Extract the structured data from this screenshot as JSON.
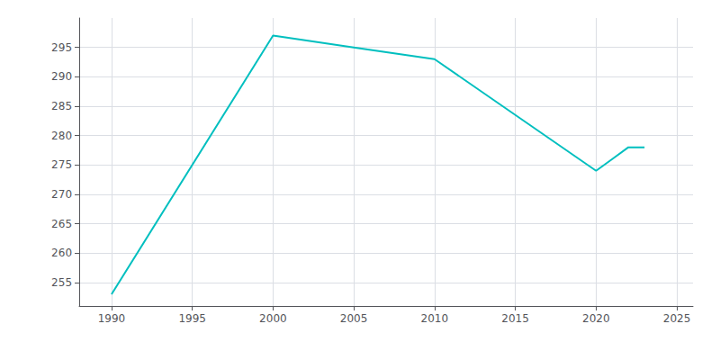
{
  "chart_data": {
    "type": "line",
    "x": [
      1990,
      2000,
      2005,
      2010,
      2020,
      2021,
      2022,
      2023
    ],
    "values": [
      253,
      297,
      295,
      293,
      274,
      276,
      278,
      278
    ],
    "color": "#00BFBF",
    "xlim": [
      1988,
      2026
    ],
    "xticks": [
      1990,
      1995,
      2000,
      2005,
      2010,
      2015,
      2020,
      2025
    ],
    "ylim": [
      251,
      300
    ],
    "yticks": [
      255,
      260,
      265,
      270,
      275,
      280,
      285,
      290,
      295
    ],
    "grid": true
  }
}
